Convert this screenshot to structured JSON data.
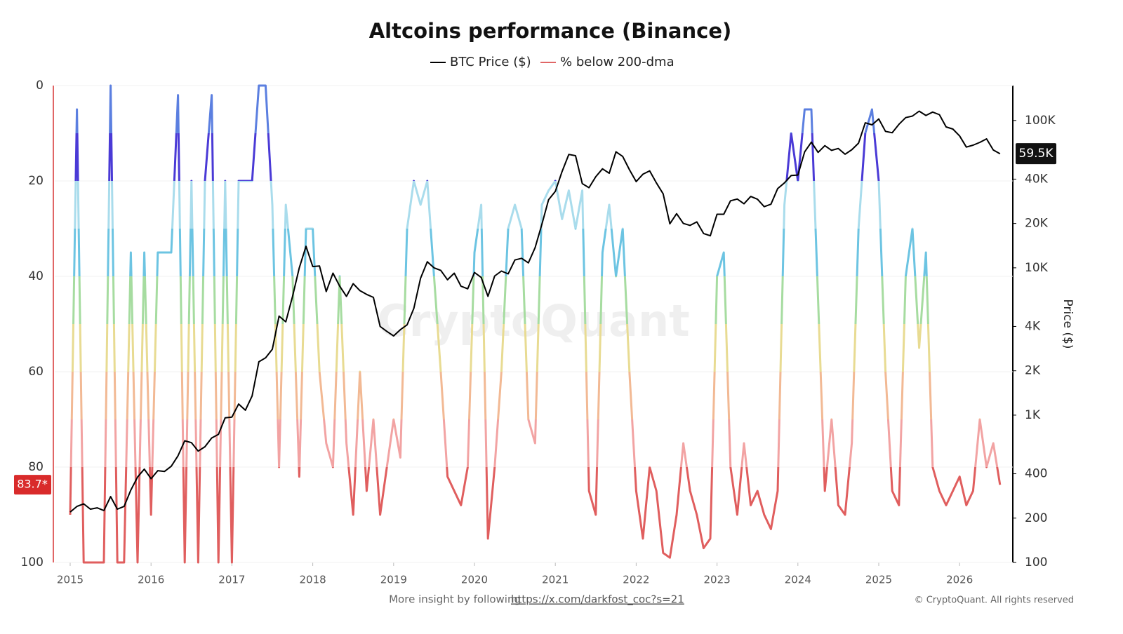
{
  "chart_data": {
    "type": "line",
    "title": "Altcoins performance (Binance)",
    "watermark": "CryptoQuant",
    "y2_label": "Price ($)",
    "footer_text": "More insight by following",
    "footer_link": "https://x.com/darkfost_coc?s=21",
    "copyright": "© CryptoQuant. All rights reserved",
    "xlim": [
      2014.809,
      2026.658
    ],
    "xticks": [
      2015,
      2016,
      2017,
      2018,
      2019,
      2020,
      2021,
      2022,
      2023,
      2024,
      2025,
      2026
    ],
    "ylim": [
      0,
      100
    ],
    "y_inverted": true,
    "yticks": [
      0,
      20,
      40,
      60,
      80,
      100
    ],
    "y2lim": [
      100,
      172600
    ],
    "y2_log": true,
    "y2ticks": [
      {
        "value": 100000,
        "label": "100K"
      },
      {
        "value": 40000,
        "label": "40K"
      },
      {
        "value": 20000,
        "label": "20K"
      },
      {
        "value": 10000,
        "label": "10K"
      },
      {
        "value": 4000,
        "label": "4K"
      },
      {
        "value": 2000,
        "label": "2K"
      },
      {
        "value": 1000,
        "label": "1K"
      },
      400,
      200,
      100
    ],
    "bands": [
      {
        "from": 0,
        "to": 10,
        "color": "#5b7fe0"
      },
      {
        "from": 10,
        "to": 20,
        "color": "#4a3ad6"
      },
      {
        "from": 20,
        "to": 30,
        "color": "#a9dcec"
      },
      {
        "from": 30,
        "to": 40,
        "color": "#6cc4e2"
      },
      {
        "from": 40,
        "to": 50,
        "color": "#a6dca0"
      },
      {
        "from": 50,
        "to": 60,
        "color": "#e8db92"
      },
      {
        "from": 60,
        "to": 70,
        "color": "#f2b994"
      },
      {
        "from": 70,
        "to": 80,
        "color": "#f2a3a3"
      },
      {
        "from": 80,
        "to": 100,
        "color": "#e05e5e"
      }
    ],
    "x": [
      2015,
      2015.083,
      2015.167,
      2015.25,
      2015.333,
      2015.417,
      2015.5,
      2015.583,
      2015.667,
      2015.75,
      2015.833,
      2015.917,
      2016,
      2016.083,
      2016.167,
      2016.25,
      2016.333,
      2016.417,
      2016.5,
      2016.583,
      2016.667,
      2016.75,
      2016.833,
      2016.917,
      2017,
      2017.083,
      2017.167,
      2017.25,
      2017.333,
      2017.417,
      2017.5,
      2017.583,
      2017.667,
      2017.75,
      2017.833,
      2017.917,
      2018,
      2018.083,
      2018.167,
      2018.25,
      2018.333,
      2018.417,
      2018.5,
      2018.583,
      2018.667,
      2018.75,
      2018.833,
      2018.917,
      2019,
      2019.083,
      2019.167,
      2019.25,
      2019.333,
      2019.417,
      2019.5,
      2019.583,
      2019.667,
      2019.75,
      2019.833,
      2019.917,
      2020,
      2020.083,
      2020.167,
      2020.25,
      2020.333,
      2020.417,
      2020.5,
      2020.583,
      2020.667,
      2020.75,
      2020.833,
      2020.917,
      2021,
      2021.083,
      2021.167,
      2021.25,
      2021.333,
      2021.417,
      2021.5,
      2021.583,
      2021.667,
      2021.75,
      2021.833,
      2021.917,
      2022,
      2022.083,
      2022.167,
      2022.25,
      2022.333,
      2022.417,
      2022.5,
      2022.583,
      2022.667,
      2022.75,
      2022.833,
      2022.917,
      2023,
      2023.083,
      2023.167,
      2023.25,
      2023.333,
      2023.417,
      2023.5,
      2023.583,
      2023.667,
      2023.75,
      2023.833,
      2023.917,
      2024,
      2024.083,
      2024.167,
      2024.25,
      2024.333,
      2024.417,
      2024.5,
      2024.583,
      2024.667,
      2024.75,
      2024.833,
      2024.917,
      2025,
      2025.083,
      2025.167,
      2025.25,
      2025.333,
      2025.417,
      2025.5,
      2025.583,
      2025.667,
      2025.75,
      2025.833,
      2025.917,
      2026,
      2026.083,
      2026.167,
      2026.25,
      2026.333,
      2026.417,
      2026.5
    ],
    "series": [
      {
        "name": "BTC Price ($)",
        "color": "#000000",
        "axis": "y2",
        "last_value": 59500,
        "last_label": "59.5K",
        "values": [
          220,
          240,
          250,
          230,
          235,
          225,
          280,
          230,
          240,
          310,
          380,
          430,
          370,
          420,
          415,
          450,
          530,
          670,
          650,
          570,
          610,
          700,
          740,
          960,
          970,
          1190,
          1080,
          1350,
          2300,
          2450,
          2800,
          4700,
          4300,
          6400,
          10000,
          14000,
          10200,
          10300,
          6900,
          9200,
          7500,
          6400,
          7800,
          7000,
          6600,
          6300,
          4000,
          3700,
          3450,
          3800,
          4100,
          5300,
          8500,
          11000,
          10000,
          9600,
          8300,
          9200,
          7500,
          7200,
          9300,
          8600,
          6400,
          8800,
          9500,
          9100,
          11300,
          11600,
          10800,
          13700,
          19700,
          29000,
          33000,
          45000,
          58800,
          57700,
          37300,
          35000,
          41500,
          47000,
          43800,
          61300,
          57000,
          46300,
          38500,
          43200,
          45500,
          37700,
          31800,
          19900,
          23300,
          20000,
          19400,
          20500,
          17100,
          16500,
          23100,
          23100,
          28500,
          29300,
          27200,
          30500,
          29200,
          26000,
          27000,
          34500,
          37700,
          42300,
          42600,
          61200,
          71300,
          60700,
          67500,
          62700,
          64600,
          59000,
          63300,
          70200,
          96400,
          93400,
          102400,
          84400,
          82500,
          94200,
          104600,
          107100,
          115700,
          108200,
          114000,
          109500,
          90400,
          87500,
          78600,
          66000,
          68000,
          71000,
          75000,
          63000,
          59500
        ]
      },
      {
        "name": "% below 200-dma",
        "color": "#e06666",
        "axis": "y",
        "last_value": 83.7,
        "last_label": "83.7*",
        "values": [
          90,
          5,
          100,
          100,
          100,
          100,
          0,
          100,
          100,
          35,
          100,
          35,
          90,
          35,
          35,
          35,
          2,
          100,
          20,
          100,
          20,
          2,
          100,
          20,
          100,
          20,
          20,
          20,
          0,
          0,
          25,
          80,
          25,
          40,
          82,
          30,
          30,
          60,
          75,
          80,
          40,
          75,
          90,
          60,
          85,
          70,
          90,
          80,
          70,
          78,
          30,
          20,
          25,
          20,
          40,
          60,
          82,
          85,
          88,
          80,
          35,
          25,
          95,
          80,
          60,
          30,
          25,
          30,
          70,
          75,
          25,
          22,
          20,
          28,
          22,
          30,
          22,
          85,
          90,
          35,
          25,
          40,
          30,
          60,
          85,
          95,
          80,
          85,
          98,
          99,
          90,
          75,
          85,
          90,
          97,
          95,
          40,
          35,
          80,
          90,
          75,
          88,
          85,
          90,
          93,
          85,
          25,
          10,
          20,
          5,
          5,
          45,
          85,
          70,
          88,
          90,
          75,
          30,
          10,
          5,
          20,
          60,
          85,
          88,
          40,
          30,
          55,
          35,
          80,
          85,
          88,
          85,
          82,
          88,
          85,
          70,
          80,
          75,
          83.7
        ]
      }
    ]
  }
}
